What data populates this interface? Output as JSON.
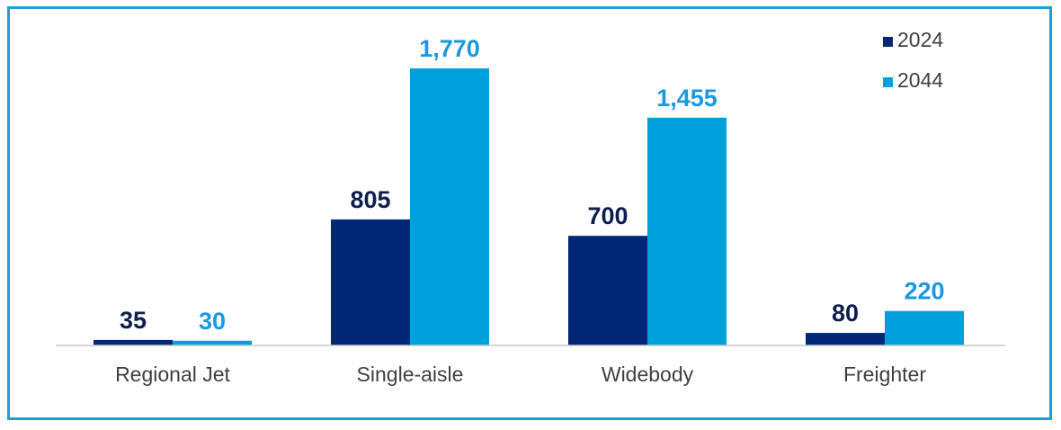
{
  "chart_data": {
    "type": "bar",
    "title": "",
    "xlabel": "",
    "ylabel": "",
    "categories": [
      "Regional Jet",
      "Single-aisle",
      "Widebody",
      "Freighter"
    ],
    "series": [
      {
        "name": "2024",
        "values": [
          35,
          805,
          700,
          80
        ],
        "labels": [
          "35",
          "805",
          "700",
          "80"
        ],
        "color": "#002776",
        "label_color": "#0e1f4f"
      },
      {
        "name": "2044",
        "values": [
          30,
          1770,
          1455,
          220
        ],
        "labels": [
          "30",
          "1,770",
          "1,455",
          "220"
        ],
        "color": "#00a0dc",
        "label_color": "#1a99e0"
      }
    ],
    "ylim": [
      0,
      1770
    ],
    "grid": false,
    "legend": "top-right",
    "colors": {
      "frame": "#1aa0d8",
      "axis": "#c8c8c8",
      "text": "#404040"
    }
  }
}
